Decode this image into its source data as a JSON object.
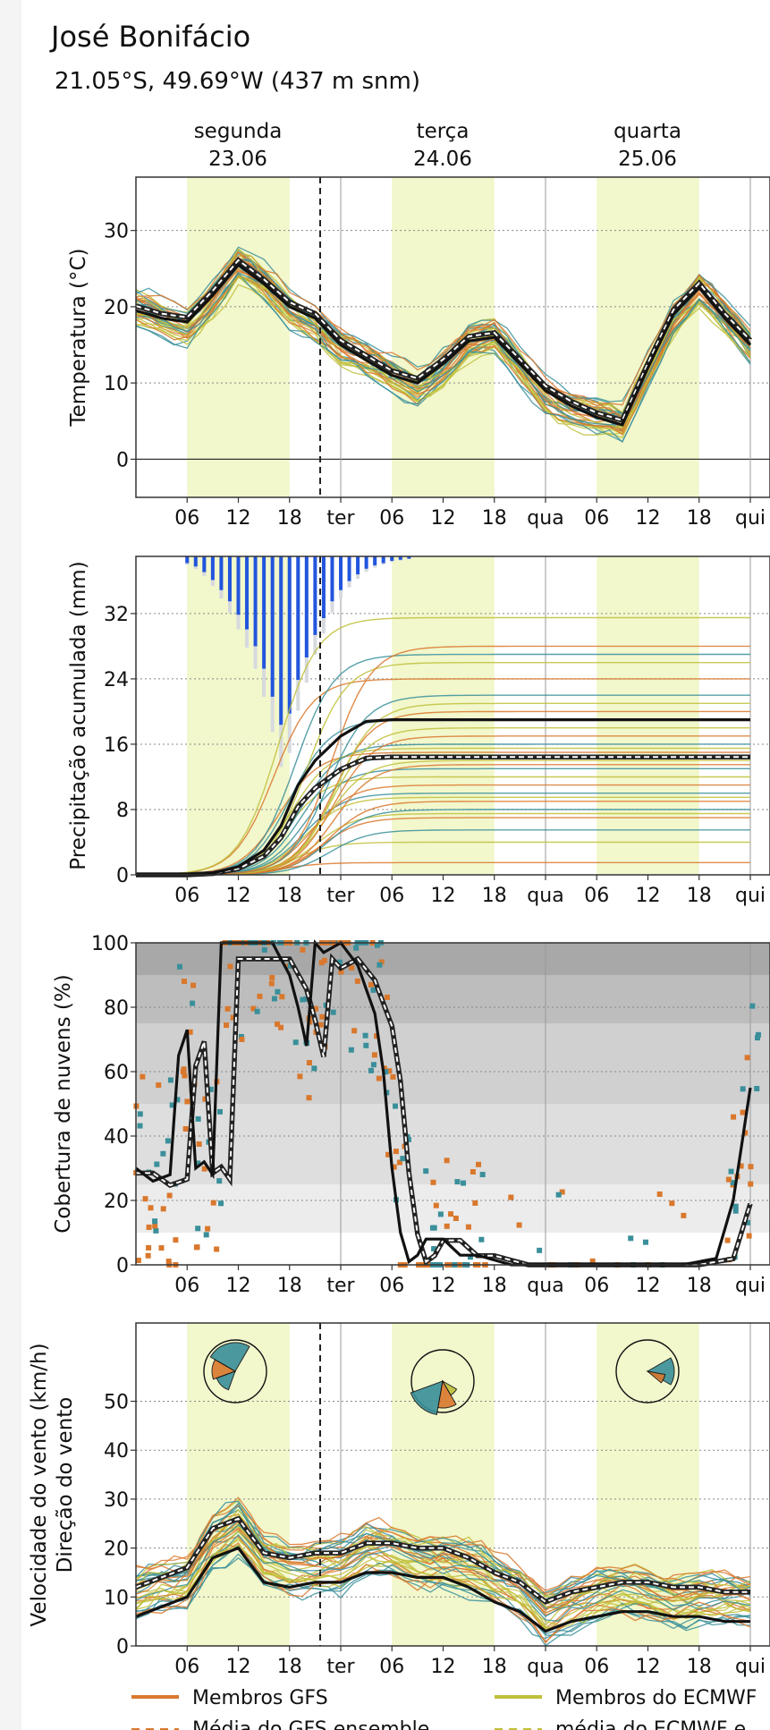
{
  "header": {
    "title": "José Bonifácio",
    "subtitle": "21.05°S, 49.69°W (437 m snm)"
  },
  "days": [
    {
      "name": "segunda",
      "date": "23.06"
    },
    {
      "name": "terça",
      "date": "24.06"
    },
    {
      "name": "quarta",
      "date": "25.06"
    }
  ],
  "x_ticks": [
    "06",
    "12",
    "18",
    "ter",
    "06",
    "12",
    "18",
    "qua",
    "06",
    "12",
    "18",
    "qui"
  ],
  "colors": {
    "gfs": "#d9782d",
    "ecmwf": "#bfbf3a",
    "other": "#3a8f9a",
    "mean": "#111111",
    "day_band": "#f2f7cc",
    "precip_bar": "#2255dd"
  },
  "legend": {
    "items": [
      {
        "label": "Membros GFS",
        "style": "solid",
        "color": "#d9782d"
      },
      {
        "label": "Membros do ECMWF",
        "style": "solid",
        "color": "#bfbf3a"
      },
      {
        "label": "Média do GFS ensemble",
        "style": "dashed",
        "color": "#d9782d"
      },
      {
        "label": "média do ECMWF e",
        "style": "dashed",
        "color": "#bfbf3a"
      }
    ]
  },
  "chart_data": [
    {
      "type": "line",
      "panel": "temperature",
      "ylabel": "Temperatura (°C)",
      "ylim": [
        -5,
        37
      ],
      "yticks": [
        0,
        10,
        20,
        30
      ],
      "x_hours": [
        0,
        3,
        6,
        9,
        12,
        15,
        18,
        21,
        24,
        27,
        30,
        33,
        36,
        39,
        42,
        45,
        48,
        51,
        54,
        57,
        60,
        63,
        66,
        69,
        72
      ],
      "series": [
        {
          "name": "ensemble mean",
          "values": [
            19.5,
            18.5,
            18,
            21.5,
            25.5,
            23,
            20,
            18.5,
            15,
            13,
            11,
            10,
            12.5,
            15.5,
            16,
            12.5,
            9,
            7,
            5.5,
            4.5,
            12,
            19,
            22.5,
            18.5,
            15
          ]
        }
      ]
    },
    {
      "type": "line",
      "panel": "precipitation",
      "ylabel": "Precipitação acumulada (mm)",
      "ylim": [
        0,
        39
      ],
      "yticks": [
        0,
        8,
        16,
        24,
        32
      ],
      "x_hours": [
        0,
        6,
        9,
        12,
        15,
        17,
        19,
        21,
        24,
        27,
        30,
        40,
        72
      ],
      "series": [
        {
          "name": "ensemble mean",
          "values": [
            0,
            0,
            0.2,
            1,
            3,
            6,
            11,
            14,
            17,
            18.8,
            19,
            19,
            19
          ]
        }
      ],
      "bars_mm_per_step": [
        {
          "hour": 6,
          "value": 0.6
        },
        {
          "hour": 7,
          "value": 0.9
        },
        {
          "hour": 8,
          "value": 1.4
        },
        {
          "hour": 9,
          "value": 2.1
        },
        {
          "hour": 10,
          "value": 3.0
        },
        {
          "hour": 11,
          "value": 4.0
        },
        {
          "hour": 12,
          "value": 5.2
        },
        {
          "hour": 13,
          "value": 6.5
        },
        {
          "hour": 14,
          "value": 8.0
        },
        {
          "hour": 15,
          "value": 10.0
        },
        {
          "hour": 16,
          "value": 12.5
        },
        {
          "hour": 17,
          "value": 15.0
        },
        {
          "hour": 18,
          "value": 14.0
        },
        {
          "hour": 19,
          "value": 11.0
        },
        {
          "hour": 20,
          "value": 9.0
        },
        {
          "hour": 21,
          "value": 7.0
        },
        {
          "hour": 22,
          "value": 5.5
        },
        {
          "hour": 23,
          "value": 4.0
        },
        {
          "hour": 24,
          "value": 3.0
        },
        {
          "hour": 25,
          "value": 2.2
        },
        {
          "hour": 26,
          "value": 1.6
        },
        {
          "hour": 27,
          "value": 1.1
        },
        {
          "hour": 28,
          "value": 0.8
        },
        {
          "hour": 29,
          "value": 0.6
        },
        {
          "hour": 30,
          "value": 0.4
        },
        {
          "hour": 31,
          "value": 0.3
        },
        {
          "hour": 32,
          "value": 0.2
        }
      ]
    },
    {
      "type": "line",
      "panel": "cloud_cover",
      "ylabel": "Cobertura de nuvens (%)",
      "ylim": [
        0,
        100
      ],
      "yticks": [
        0,
        20,
        40,
        60,
        80,
        100
      ],
      "x_hours": [
        0,
        2,
        4,
        5,
        6,
        7,
        8,
        9,
        10,
        12,
        14,
        16,
        18,
        19,
        20,
        21,
        22,
        24,
        26,
        28,
        29,
        30,
        31,
        32,
        33,
        34,
        36,
        38,
        40,
        44,
        48,
        56,
        64,
        68,
        70,
        72
      ],
      "series": [
        {
          "name": "ensemble mean",
          "values": [
            30,
            26,
            28,
            65,
            73,
            30,
            32,
            28,
            100,
            100,
            100,
            100,
            90,
            80,
            68,
            100,
            97,
            100,
            93,
            78,
            60,
            30,
            10,
            1,
            3,
            8,
            8,
            3,
            3,
            0,
            0,
            0,
            0,
            2,
            20,
            55
          ]
        }
      ]
    },
    {
      "type": "line",
      "panel": "wind",
      "ylabel": "Velocidade do vento (km/h)",
      "ylabel2": "Direção do vento",
      "ylim": [
        0,
        66
      ],
      "yticks": [
        0,
        10,
        20,
        30,
        40,
        50
      ],
      "x_hours": [
        0,
        3,
        6,
        9,
        12,
        15,
        18,
        21,
        24,
        27,
        30,
        33,
        36,
        39,
        42,
        45,
        48,
        51,
        54,
        57,
        60,
        63,
        66,
        69,
        72
      ],
      "series": [
        {
          "name": "ensemble mean",
          "values": [
            6,
            8,
            10,
            18,
            20,
            13,
            12,
            13,
            13,
            15,
            15,
            14,
            14,
            12,
            9,
            7,
            3,
            5,
            6,
            7,
            7,
            6,
            6,
            5,
            5
          ]
        }
      ]
    }
  ]
}
